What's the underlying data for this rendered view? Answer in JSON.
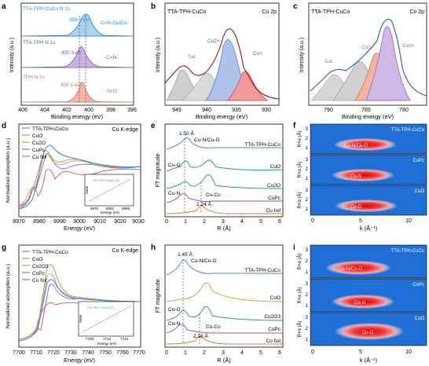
{
  "chart_data": [
    {
      "panel": "a",
      "type": "area",
      "xlabel": "Binding energy (eV)",
      "ylabel": "Intensity (a.u.)",
      "xlim": [
        406,
        396
      ],
      "x_ticks": [
        "406",
        "404",
        "402",
        "400",
        "398",
        "396"
      ],
      "series": [
        {
          "name": "TTA-TPH-CuCo  N 1s",
          "peak": 399.6,
          "peak_label": "399.6 eV",
          "assignment": "-C=N-Cu/Co-",
          "color": "#2a8fc9"
        },
        {
          "name": "TTA-TPH  N 1s",
          "peak": 400.3,
          "peak_label": "400.3 eV",
          "assignment": "-C=N-",
          "color": "#9b59b6"
        },
        {
          "name": "TPH  N 1s",
          "peak": 400.1,
          "peak_label": "400.1 eV",
          "assignment": "-NH2",
          "color": "#e8836b"
        }
      ]
    },
    {
      "panel": "b",
      "type": "area",
      "title": "TTA-TPH-CuCo",
      "corner_label": "Cu 2p",
      "xlabel": "Binding energy (eV)",
      "ylabel": "Intensity (a.u.)",
      "xlim": [
        947,
        928
      ],
      "x_ticks": [
        "945",
        "940",
        "935",
        "930"
      ],
      "peaks": [
        {
          "label": "Cu2+",
          "center": 935.0,
          "color": "#6b8fd6"
        },
        {
          "label": "Cu+",
          "center": 932.7,
          "color": "#e24e4e"
        },
        {
          "label": "Sat.",
          "center": 943.5,
          "color": "#9a9a9a"
        }
      ]
    },
    {
      "panel": "c",
      "type": "area",
      "title": "TTA-TPH-CuCo",
      "corner_label": "Co 2p",
      "xlabel": "Binding energy (eV)",
      "ylabel": "Intensity (a.u.)",
      "xlim": [
        793,
        776
      ],
      "x_ticks": [
        "790",
        "785",
        "780"
      ],
      "peaks": [
        {
          "label": "Co2+",
          "center": 782.5,
          "color": "#e87a55"
        },
        {
          "label": "Co3+",
          "center": 780.6,
          "color": "#a98ad6"
        },
        {
          "label": "Sat.",
          "center": 786.5,
          "color": "#9a9a9a"
        }
      ]
    },
    {
      "panel": "d",
      "type": "line",
      "corner_label": "Cu K-edge",
      "xlabel": "Energy (eV)",
      "ylabel": "Normalized adsorption (a.u.)",
      "xlim": [
        8970,
        9030
      ],
      "x_ticks": [
        "8970",
        "8980",
        "8990",
        "9000",
        "9010",
        "9020",
        "9030"
      ],
      "legend": [
        "TTA-TPH-CuCo",
        "CuO",
        "Cu2O",
        "CuPc",
        "Cu foil"
      ],
      "inset": {
        "xlabel": "Energy (eV)",
        "ylabel": "State",
        "x_ticks": [
          "8979",
          "8982",
          "8985"
        ],
        "note": "TTA-TPH-CuCo(1.19)"
      }
    },
    {
      "panel": "e",
      "type": "line",
      "xlabel": "R (Å)",
      "ylabel": "FT magnitude",
      "xlim": [
        0,
        6
      ],
      "x_ticks": [
        "0",
        "1",
        "2",
        "3",
        "4",
        "5",
        "6"
      ],
      "curve_labels": [
        "TTA-TPH-CuCo",
        "CuO",
        "Cu2O",
        "CuPc",
        "Cu foil"
      ],
      "annotations": [
        {
          "text": "1.50 Å",
          "r": 1.5
        },
        {
          "text": "Cu-N/Cu-O",
          "r": 1.5
        },
        {
          "text": "Cu-O",
          "r": 1.5
        },
        {
          "text": "Cu-N",
          "r": 1.5
        },
        {
          "text": "Cu-Cu",
          "r": 2.24
        },
        {
          "text": "2.24 Å",
          "r": 2.24
        }
      ]
    },
    {
      "panel": "f",
      "type": "heatmap",
      "xlabel": "k (Å⁻¹)",
      "ylabel": "R+α (Å)",
      "x_ticks": [
        "0",
        "5",
        "10"
      ],
      "y_ticks": [
        "1",
        "2",
        "3"
      ],
      "subpanels": [
        {
          "name": "TTA-TPH-CuCo",
          "label": "Cu-N/Cu-O",
          "k": 4.2,
          "r": 1.5
        },
        {
          "name": "CuPc",
          "label": "Cu-N",
          "k": 4.2,
          "r": 1.5
        },
        {
          "name": "CuO",
          "label": "Cu-O",
          "k": 4.6,
          "r": 1.5
        }
      ]
    },
    {
      "panel": "g",
      "type": "line",
      "corner_label": "Co K-edge",
      "xlabel": "Energy (eV)",
      "ylabel": "Normalized adsorption (a.u.)",
      "xlim": [
        7700,
        7770
      ],
      "x_ticks": [
        "7700",
        "7710",
        "7720",
        "7730",
        "7740",
        "7750",
        "7760",
        "7770"
      ],
      "legend": [
        "TTA-TPH-CuCo",
        "CoO",
        "Co2O3",
        "CoPc",
        "Co foil"
      ],
      "inset": {
        "xlabel": "Energy (eV)",
        "ylabel": "State",
        "x_ticks": [
          "7708",
          "7712",
          "7716"
        ],
        "note": "TTA-TPH-CuCo(2.22)"
      }
    },
    {
      "panel": "h",
      "type": "line",
      "xlabel": "R (Å)",
      "ylabel": "FT magnitude",
      "xlim": [
        0,
        6
      ],
      "x_ticks": [
        "0",
        "1",
        "2",
        "3",
        "4",
        "5",
        "6"
      ],
      "curve_labels": [
        "TTA-TPH-CuCo",
        "CoO",
        "Co2O3",
        "CoPc",
        "Co foil"
      ],
      "annotations": [
        {
          "text": "1.45 Å",
          "r": 1.45
        },
        {
          "text": "Co-N/Co-O",
          "r": 1.45
        },
        {
          "text": "Co-O",
          "r": 1.45
        },
        {
          "text": "Co-N",
          "r": 1.45
        },
        {
          "text": "Co-Co",
          "r": 2.16
        },
        {
          "text": "2.16 Å",
          "r": 2.16
        }
      ]
    },
    {
      "panel": "i",
      "type": "heatmap",
      "xlabel": "k (Å⁻¹)",
      "ylabel": "R+α (Å)",
      "x_ticks": [
        "0",
        "5",
        "10"
      ],
      "y_ticks": [
        "1",
        "2",
        "3"
      ],
      "subpanels": [
        {
          "name": "TTA-TPH-CuCo",
          "label": "Co-N/Co-O",
          "k": 4.0,
          "r": 1.5
        },
        {
          "name": "CoPc",
          "label": "Co-N",
          "k": 4.3,
          "r": 1.5
        },
        {
          "name": "CoO",
          "label": "Co-O",
          "k": 5.2,
          "r": 2.3
        }
      ]
    }
  ]
}
